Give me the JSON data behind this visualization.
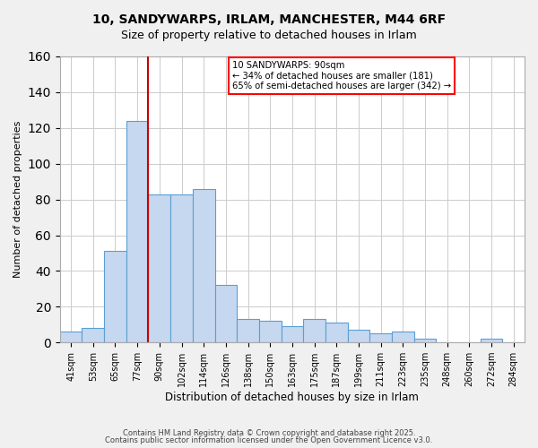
{
  "title1": "10, SANDYWARPS, IRLAM, MANCHESTER, M44 6RF",
  "title2": "Size of property relative to detached houses in Irlam",
  "xlabel": "Distribution of detached houses by size in Irlam",
  "ylabel": "Number of detached properties",
  "bar_color": "#c5d8f0",
  "bar_edge_color": "#5a9fd4",
  "categories": [
    "41sqm",
    "53sqm",
    "65sqm",
    "77sqm",
    "90sqm",
    "102sqm",
    "114sqm",
    "126sqm",
    "138sqm",
    "150sqm",
    "163sqm",
    "175sqm",
    "187sqm",
    "199sqm",
    "211sqm",
    "223sqm",
    "235sqm",
    "248sqm",
    "260sqm",
    "272sqm",
    "284sqm"
  ],
  "values": [
    6,
    8,
    51,
    124,
    83,
    83,
    86,
    32,
    13,
    12,
    9,
    13,
    11,
    7,
    5,
    6,
    2,
    0,
    0,
    2,
    0
  ],
  "ylim": [
    0,
    160
  ],
  "yticks": [
    0,
    20,
    40,
    60,
    80,
    100,
    120,
    140,
    160
  ],
  "property_line_label": "10 SANDYWARPS: 90sqm",
  "annotation_line1": "← 34% of detached houses are smaller (181)",
  "annotation_line2": "65% of semi-detached houses are larger (342) →",
  "annotation_box_color": "white",
  "annotation_box_edge_color": "red",
  "vline_color": "#cc0000",
  "footer1": "Contains HM Land Registry data © Crown copyright and database right 2025.",
  "footer2": "Contains public sector information licensed under the Open Government Licence v3.0.",
  "background_color": "#f0f0f0",
  "plot_background_color": "#ffffff",
  "grid_color": "#cccccc"
}
